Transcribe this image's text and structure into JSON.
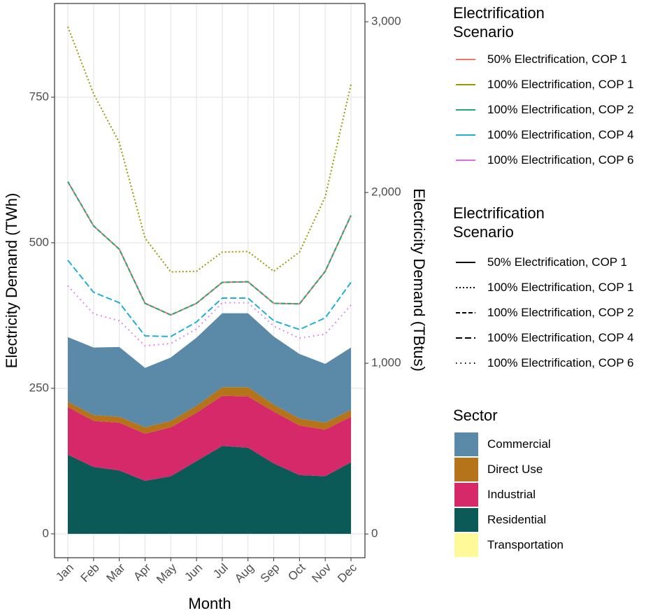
{
  "chart_data": {
    "type": "area",
    "x_label": "Month",
    "y_label": "Electricity Demand (TWh)",
    "y2_label": "Electricity Demand (TBtus)",
    "categories": [
      "Jan",
      "Feb",
      "Mar",
      "Apr",
      "May",
      "Jun",
      "Jul",
      "Aug",
      "Sep",
      "Oct",
      "Nov",
      "Dec"
    ],
    "ylim": [
      -41,
      911
    ],
    "yticks": [
      0,
      250,
      500,
      750
    ],
    "y2lim": [
      -139,
      3107
    ],
    "y2ticks": [
      0,
      {
        "value": 1000,
        "label": "1,000"
      },
      {
        "value": 2000,
        "label": "2,000"
      },
      {
        "value": 3000,
        "label": "3,000"
      }
    ],
    "grid": true,
    "stacked": true,
    "series": [
      {
        "name": "Residential",
        "color": "#0b5a57",
        "values": [
          136,
          115,
          109,
          91,
          99,
          125,
          151,
          148,
          121,
          101,
          99,
          123
        ]
      },
      {
        "name": "Industrial",
        "color": "#d6296a",
        "values": [
          82,
          79,
          82,
          81,
          84,
          83,
          86,
          88,
          89,
          85,
          80,
          78
        ]
      },
      {
        "name": "Direct Use",
        "color": "#b5731a",
        "values": [
          9,
          10,
          10,
          11,
          11,
          12,
          15,
          16,
          12,
          12,
          12,
          12
        ]
      },
      {
        "name": "Commercial",
        "color": "#5a8aa8",
        "values": [
          111,
          116,
          120,
          102,
          109,
          117,
          127,
          127,
          117,
          111,
          101,
          107
        ]
      },
      {
        "name": "Transportation",
        "color": "#fff99a",
        "values": [
          0,
          0,
          0,
          0,
          0,
          0,
          0,
          0,
          0,
          0,
          0,
          0
        ]
      }
    ],
    "sector_legend_title": "Sector",
    "sector_legend_order": [
      3,
      2,
      1,
      0,
      4
    ],
    "lines": [
      {
        "name": "50% Electrification, COP 1",
        "color": "#f0766a",
        "linestyle": "solid",
        "values": [
          605,
          529,
          489,
          396,
          376,
          396,
          432,
          433,
          396,
          395,
          451,
          547
        ]
      },
      {
        "name": "100% Electrification, COP 1",
        "color": "#9a9a00",
        "linestyle": "dotted",
        "values": [
          871,
          756,
          672,
          508,
          450,
          451,
          484,
          485,
          451,
          484,
          579,
          772
        ]
      },
      {
        "name": "100% Electrification, COP 2",
        "color": "#20a878",
        "linestyle": "dashed",
        "values": [
          605,
          529,
          489,
          396,
          376,
          396,
          432,
          433,
          396,
          395,
          451,
          547
        ]
      },
      {
        "name": "100% Electrification, COP 4",
        "color": "#1fb0d8",
        "linestyle": "longdash",
        "values": [
          470,
          415,
          397,
          340,
          339,
          364,
          405,
          405,
          366,
          351,
          371,
          432
        ]
      },
      {
        "name": "100% Electrification, COP 6",
        "color": "#e06be8",
        "linestyle": "sparsedot",
        "values": [
          426,
          378,
          366,
          323,
          327,
          352,
          397,
          397,
          357,
          336,
          343,
          393
        ]
      }
    ],
    "color_legend_title": "Electrification Scenario",
    "linetype_legend_title": "Electrification Scenario"
  }
}
